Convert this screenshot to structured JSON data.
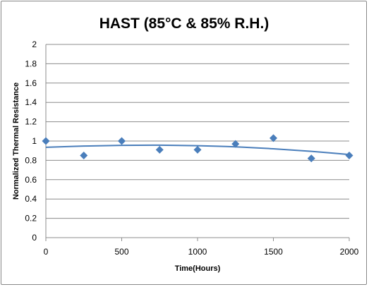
{
  "chart_data": {
    "type": "scatter",
    "title": "HAST (85°C & 85% R.H.)",
    "xlabel": "Time(Hours)",
    "ylabel": "Normalized Thermal Resistance",
    "xlim": [
      0,
      2000
    ],
    "ylim": [
      0,
      2
    ],
    "x_ticks": [
      "0",
      "500",
      "1000",
      "1500",
      "2000"
    ],
    "y_ticks": [
      "0",
      "0.2",
      "0.4",
      "0.6",
      "0.8",
      "1",
      "1.2",
      "1.4",
      "1.6",
      "1.8",
      "2"
    ],
    "grid": "horizontal",
    "legend": "none",
    "series": [
      {
        "marker": "diamond",
        "color": "#4a7ebb",
        "x": [
          0,
          250,
          500,
          750,
          1000,
          1250,
          1500,
          1750,
          2000
        ],
        "y": [
          1.0,
          0.85,
          1.0,
          0.91,
          0.91,
          0.97,
          1.03,
          0.82,
          0.85
        ]
      }
    ],
    "trendline": {
      "type": "polynomial",
      "color": "#4a7ebb",
      "x": [
        0,
        250,
        500,
        750,
        1000,
        1250,
        1500,
        1750,
        2000
      ],
      "y": [
        0.935,
        0.948,
        0.955,
        0.957,
        0.952,
        0.94,
        0.92,
        0.893,
        0.86
      ]
    }
  }
}
